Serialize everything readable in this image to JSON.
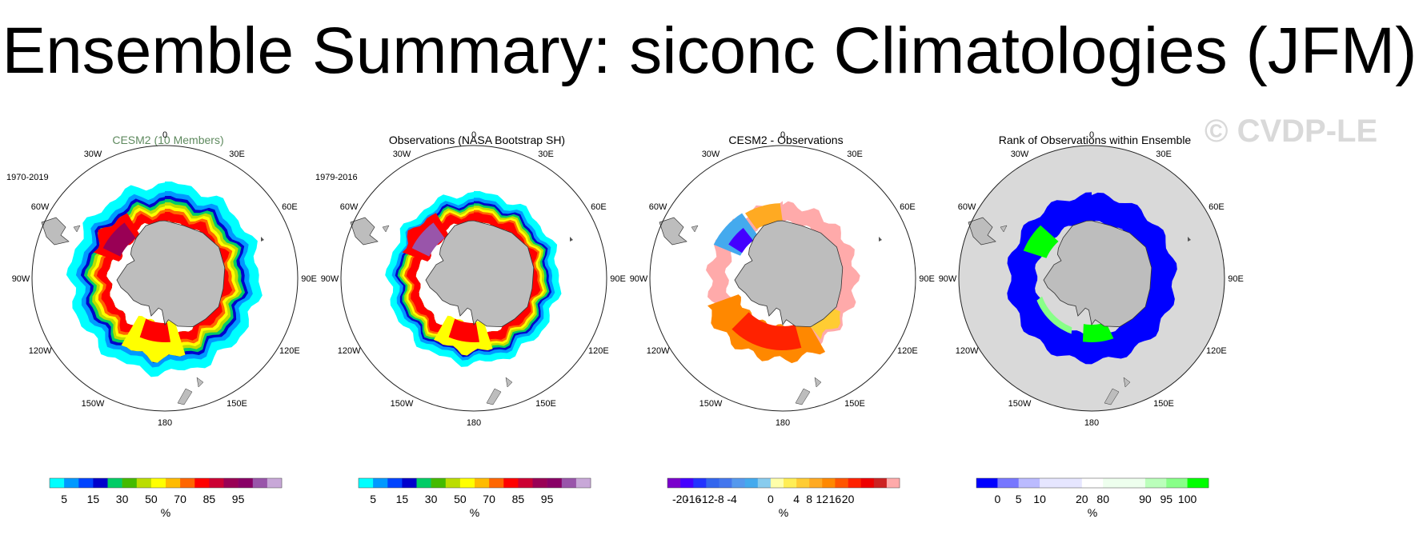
{
  "title": "Ensemble Summary: siconc Climatologies (JFM)",
  "watermark": "© CVDP-LE",
  "longitude_labels": [
    "0",
    "30E",
    "60E",
    "90E",
    "120E",
    "150E",
    "180",
    "150W",
    "120W",
    "90W",
    "60W",
    "30W"
  ],
  "colors": {
    "land": "#bdbdbd",
    "circle_edge": "#222222",
    "cesm_title": "#5f8a5f",
    "rank_background": "#d9d9d9"
  },
  "panels": [
    {
      "title": "CESM2 (10 Members)",
      "period": "1970-2019",
      "type": "climatology",
      "colorbar": {
        "colors": [
          "#00ffff",
          "#0099ff",
          "#0044ff",
          "#0000cc",
          "#00cc66",
          "#44bb00",
          "#bbdd00",
          "#ffff00",
          "#ffbb00",
          "#ff6600",
          "#ff0000",
          "#cc0033",
          "#990055",
          "#880066",
          "#9955aa",
          "#c8a8d8"
        ],
        "labels": [
          "5",
          "15",
          "30",
          "50",
          "70",
          "85",
          "95"
        ],
        "label_boundaries": [
          1,
          3,
          5,
          7,
          9,
          11,
          13
        ],
        "unit": "%"
      }
    },
    {
      "title": "Observations (NASA Bootstrap SH)",
      "period": "1979-2016",
      "type": "climatology",
      "colorbar": {
        "colors": [
          "#00ffff",
          "#0099ff",
          "#0044ff",
          "#0000cc",
          "#00cc66",
          "#44bb00",
          "#bbdd00",
          "#ffff00",
          "#ffbb00",
          "#ff6600",
          "#ff0000",
          "#cc0033",
          "#990055",
          "#880066",
          "#9955aa",
          "#c8a8d8"
        ],
        "labels": [
          "5",
          "15",
          "30",
          "50",
          "70",
          "85",
          "95"
        ],
        "label_boundaries": [
          1,
          3,
          5,
          7,
          9,
          11,
          13
        ],
        "unit": "%"
      }
    },
    {
      "title": "CESM2 - Observations",
      "period": "",
      "type": "difference",
      "colorbar": {
        "colors": [
          "#7a00cc",
          "#4400ff",
          "#2233ff",
          "#3366ee",
          "#4477ee",
          "#5599ee",
          "#44aaee",
          "#88ccee",
          "#ffffaa",
          "#ffee55",
          "#ffcc33",
          "#ffaa22",
          "#ff8800",
          "#ff5500",
          "#ff2200",
          "#ee0000",
          "#cc2222",
          "#ffaaaa"
        ],
        "labels": [
          "-20",
          "-16",
          "-12",
          "-8",
          "-4",
          "0",
          "4",
          "8",
          "12",
          "16",
          "20"
        ],
        "label_boundaries": [
          1,
          2,
          3,
          4,
          5,
          8,
          10,
          11,
          12,
          13,
          14
        ],
        "unit": "%"
      }
    },
    {
      "title": "Rank of Observations within Ensemble",
      "period": "",
      "type": "rank",
      "colorbar": {
        "colors": [
          "#0000ff",
          "#7777ff",
          "#bbbbff",
          "#e6e6ff",
          "#e6e6ff",
          "#ffffff",
          "#eeffee",
          "#eeffee",
          "#bbffbb",
          "#88ff88",
          "#00ff00"
        ],
        "labels": [
          "0",
          "5",
          "10",
          "20",
          "80",
          "90",
          "95",
          "100"
        ],
        "label_boundaries": [
          1,
          2,
          3,
          5,
          6,
          8,
          9,
          10
        ],
        "unit": "%"
      }
    }
  ]
}
